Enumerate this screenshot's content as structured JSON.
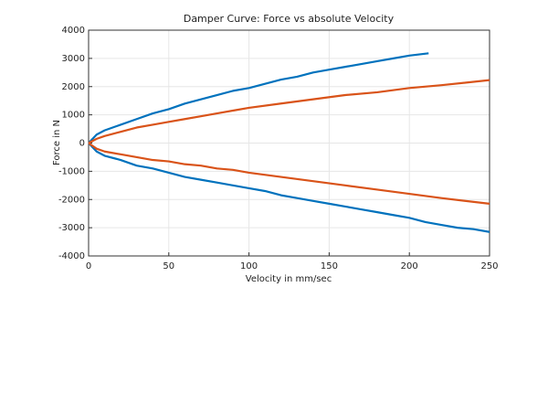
{
  "chart_data": {
    "type": "line",
    "title": "Damper Curve: Force vs absolute Velocity",
    "x_label": "Velocity in mm/sec",
    "y_label": "Force in N",
    "xlim": [
      0,
      250
    ],
    "xticks": [
      0,
      50,
      100,
      150,
      200,
      250
    ],
    "ylim": [
      -4000,
      4000
    ],
    "yticks": [
      -4000,
      -3000,
      -2000,
      -1000,
      0,
      1000,
      2000,
      3000,
      4000
    ],
    "grid": true,
    "series": [
      {
        "color": "#0072bd",
        "x": [
          0,
          5,
          10,
          20,
          30,
          40,
          50,
          60,
          70,
          80,
          90,
          100,
          110,
          120,
          130,
          140,
          150,
          160,
          170,
          180,
          190,
          200,
          212
        ],
        "values": [
          0,
          300,
          450,
          650,
          850,
          1050,
          1200,
          1400,
          1550,
          1700,
          1850,
          1950,
          2100,
          2250,
          2350,
          2500,
          2600,
          2700,
          2800,
          2900,
          3000,
          3100,
          3180
        ]
      },
      {
        "color": "#0072bd",
        "x": [
          0,
          5,
          10,
          20,
          30,
          40,
          50,
          60,
          70,
          80,
          90,
          100,
          110,
          120,
          130,
          140,
          150,
          160,
          170,
          180,
          190,
          200,
          210,
          220,
          230,
          240,
          250
        ],
        "values": [
          0,
          -300,
          -450,
          -600,
          -800,
          -900,
          -1050,
          -1200,
          -1300,
          -1400,
          -1500,
          -1600,
          -1700,
          -1850,
          -1950,
          -2050,
          -2150,
          -2250,
          -2350,
          -2450,
          -2550,
          -2650,
          -2800,
          -2900,
          -3000,
          -3050,
          -3150
        ]
      },
      {
        "color": "#d95319",
        "x": [
          0,
          5,
          10,
          20,
          30,
          40,
          50,
          60,
          70,
          80,
          90,
          100,
          120,
          140,
          160,
          180,
          200,
          220,
          250
        ],
        "values": [
          0,
          150,
          250,
          400,
          550,
          650,
          750,
          850,
          950,
          1050,
          1150,
          1250,
          1400,
          1550,
          1700,
          1800,
          1950,
          2050,
          2230
        ]
      },
      {
        "color": "#d95319",
        "x": [
          0,
          5,
          10,
          20,
          30,
          40,
          50,
          60,
          70,
          80,
          90,
          100,
          120,
          140,
          160,
          180,
          200,
          220,
          250
        ],
        "values": [
          0,
          -200,
          -300,
          -400,
          -500,
          -600,
          -650,
          -750,
          -800,
          -900,
          -950,
          -1050,
          -1200,
          -1350,
          -1500,
          -1650,
          -1800,
          -1950,
          -2150
        ]
      }
    ]
  }
}
